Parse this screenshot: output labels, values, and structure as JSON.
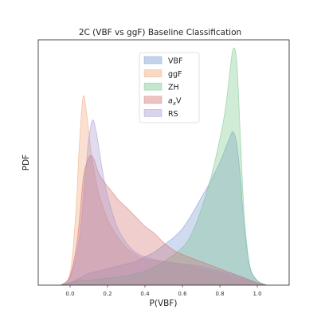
{
  "chart_data": {
    "type": "area",
    "title": "2C (VBF vs ggF) Baseline Classification",
    "xlabel": "P(VBF)",
    "ylabel": "PDF",
    "xlim": [
      -0.17,
      1.17
    ],
    "ylim": [
      0,
      1.0
    ],
    "xticks": [
      0.0,
      0.2,
      0.4,
      0.6,
      0.8,
      1.0
    ],
    "xtick_labels": [
      "0.0",
      "0.2",
      "0.4",
      "0.6",
      "0.8",
      "1.0"
    ],
    "grid": false,
    "legend_position": "top-center",
    "series": [
      {
        "name": "VBF",
        "color": "#6f8fcf",
        "x": [
          -0.05,
          0.0,
          0.05,
          0.1,
          0.15,
          0.2,
          0.25,
          0.3,
          0.35,
          0.4,
          0.45,
          0.5,
          0.55,
          0.6,
          0.65,
          0.7,
          0.75,
          0.8,
          0.83,
          0.85,
          0.87,
          0.89,
          0.91,
          0.93,
          0.96,
          1.0,
          1.05
        ],
        "y": [
          0.0,
          0.01,
          0.03,
          0.05,
          0.06,
          0.07,
          0.08,
          0.09,
          0.1,
          0.12,
          0.14,
          0.17,
          0.2,
          0.24,
          0.3,
          0.37,
          0.44,
          0.52,
          0.58,
          0.62,
          0.65,
          0.6,
          0.45,
          0.25,
          0.08,
          0.02,
          0.0
        ]
      },
      {
        "name": "ggF",
        "color": "#f0a070",
        "x": [
          -0.05,
          0.0,
          0.03,
          0.05,
          0.07,
          0.09,
          0.11,
          0.13,
          0.15,
          0.2,
          0.25,
          0.3,
          0.35,
          0.4,
          0.5,
          0.6,
          0.7,
          0.8,
          0.9,
          1.0,
          1.05
        ],
        "y": [
          0.0,
          0.05,
          0.3,
          0.6,
          0.8,
          0.72,
          0.58,
          0.48,
          0.4,
          0.28,
          0.21,
          0.16,
          0.13,
          0.11,
          0.1,
          0.09,
          0.07,
          0.05,
          0.03,
          0.01,
          0.0
        ]
      },
      {
        "name": "ZH",
        "color": "#6cc080",
        "x": [
          -0.05,
          0.0,
          0.05,
          0.1,
          0.2,
          0.3,
          0.4,
          0.5,
          0.6,
          0.65,
          0.7,
          0.75,
          0.8,
          0.83,
          0.85,
          0.87,
          0.89,
          0.91,
          0.93,
          0.96,
          1.0,
          1.05
        ],
        "y": [
          0.0,
          0.01,
          0.02,
          0.02,
          0.03,
          0.04,
          0.06,
          0.1,
          0.16,
          0.22,
          0.32,
          0.45,
          0.62,
          0.75,
          0.88,
          1.0,
          0.95,
          0.62,
          0.3,
          0.08,
          0.02,
          0.0
        ]
      },
      {
        "name": "a_xV",
        "color": "#d06868",
        "x": [
          -0.05,
          0.0,
          0.04,
          0.07,
          0.09,
          0.11,
          0.13,
          0.15,
          0.18,
          0.22,
          0.26,
          0.3,
          0.35,
          0.4,
          0.45,
          0.5,
          0.55,
          0.6,
          0.7,
          0.8,
          0.9,
          1.0,
          1.05
        ],
        "y": [
          0.0,
          0.04,
          0.2,
          0.45,
          0.52,
          0.55,
          0.53,
          0.48,
          0.44,
          0.4,
          0.36,
          0.33,
          0.29,
          0.25,
          0.22,
          0.18,
          0.15,
          0.13,
          0.1,
          0.07,
          0.04,
          0.01,
          0.0
        ]
      },
      {
        "name": "RS",
        "color": "#a090cc",
        "x": [
          -0.05,
          0.0,
          0.05,
          0.08,
          0.1,
          0.12,
          0.14,
          0.17,
          0.2,
          0.25,
          0.3,
          0.35,
          0.4,
          0.5,
          0.6,
          0.7,
          0.8,
          0.9,
          1.0,
          1.05
        ],
        "y": [
          0.0,
          0.03,
          0.2,
          0.45,
          0.62,
          0.7,
          0.65,
          0.5,
          0.38,
          0.25,
          0.18,
          0.14,
          0.12,
          0.1,
          0.09,
          0.08,
          0.06,
          0.04,
          0.01,
          0.0
        ]
      }
    ],
    "legend": [
      {
        "label": "VBF",
        "color": "#6f8fcf"
      },
      {
        "label": "ggF",
        "color": "#f0a070"
      },
      {
        "label": "ZH",
        "color": "#6cc080"
      },
      {
        "label_main": "a",
        "label_sub": "x",
        "label_tail": "V",
        "color": "#d06868"
      },
      {
        "label": "RS",
        "color": "#a090cc"
      }
    ]
  }
}
